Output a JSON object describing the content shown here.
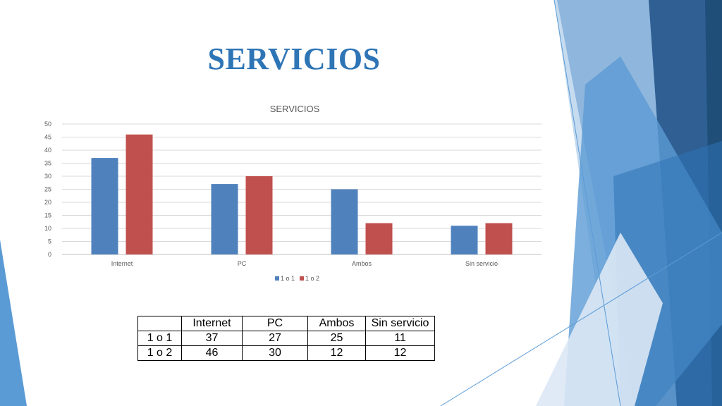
{
  "slide": {
    "title": "SERVICIOS"
  },
  "theme": {
    "series_colors": [
      "#4f81bd",
      "#c0504d"
    ],
    "title_color": "#2e75b6",
    "deco_colors": [
      "#1f4e79",
      "#2e75b6",
      "#5b9bd5",
      "#9dc3e6"
    ]
  },
  "chart_data": {
    "type": "bar",
    "title": "SERVICIOS",
    "categories": [
      "Internet",
      "PC",
      "Ambos",
      "Sin servicio"
    ],
    "series": [
      {
        "name": "1 o 1",
        "values": [
          37,
          27,
          25,
          11
        ]
      },
      {
        "name": "1 o 2",
        "values": [
          46,
          30,
          12,
          12
        ]
      }
    ],
    "ylim": [
      0,
      50
    ],
    "yticks": [
      0,
      5,
      10,
      15,
      20,
      25,
      30,
      35,
      40,
      45,
      50
    ],
    "grid": true,
    "legend": "bottom"
  },
  "table": {
    "header": [
      "",
      "Internet",
      "PC",
      "Ambos",
      "Sin servicio"
    ],
    "rows": [
      [
        "1 o 1",
        "37",
        "27",
        "25",
        "11"
      ],
      [
        "1 o 2",
        "46",
        "30",
        "12",
        "12"
      ]
    ]
  }
}
